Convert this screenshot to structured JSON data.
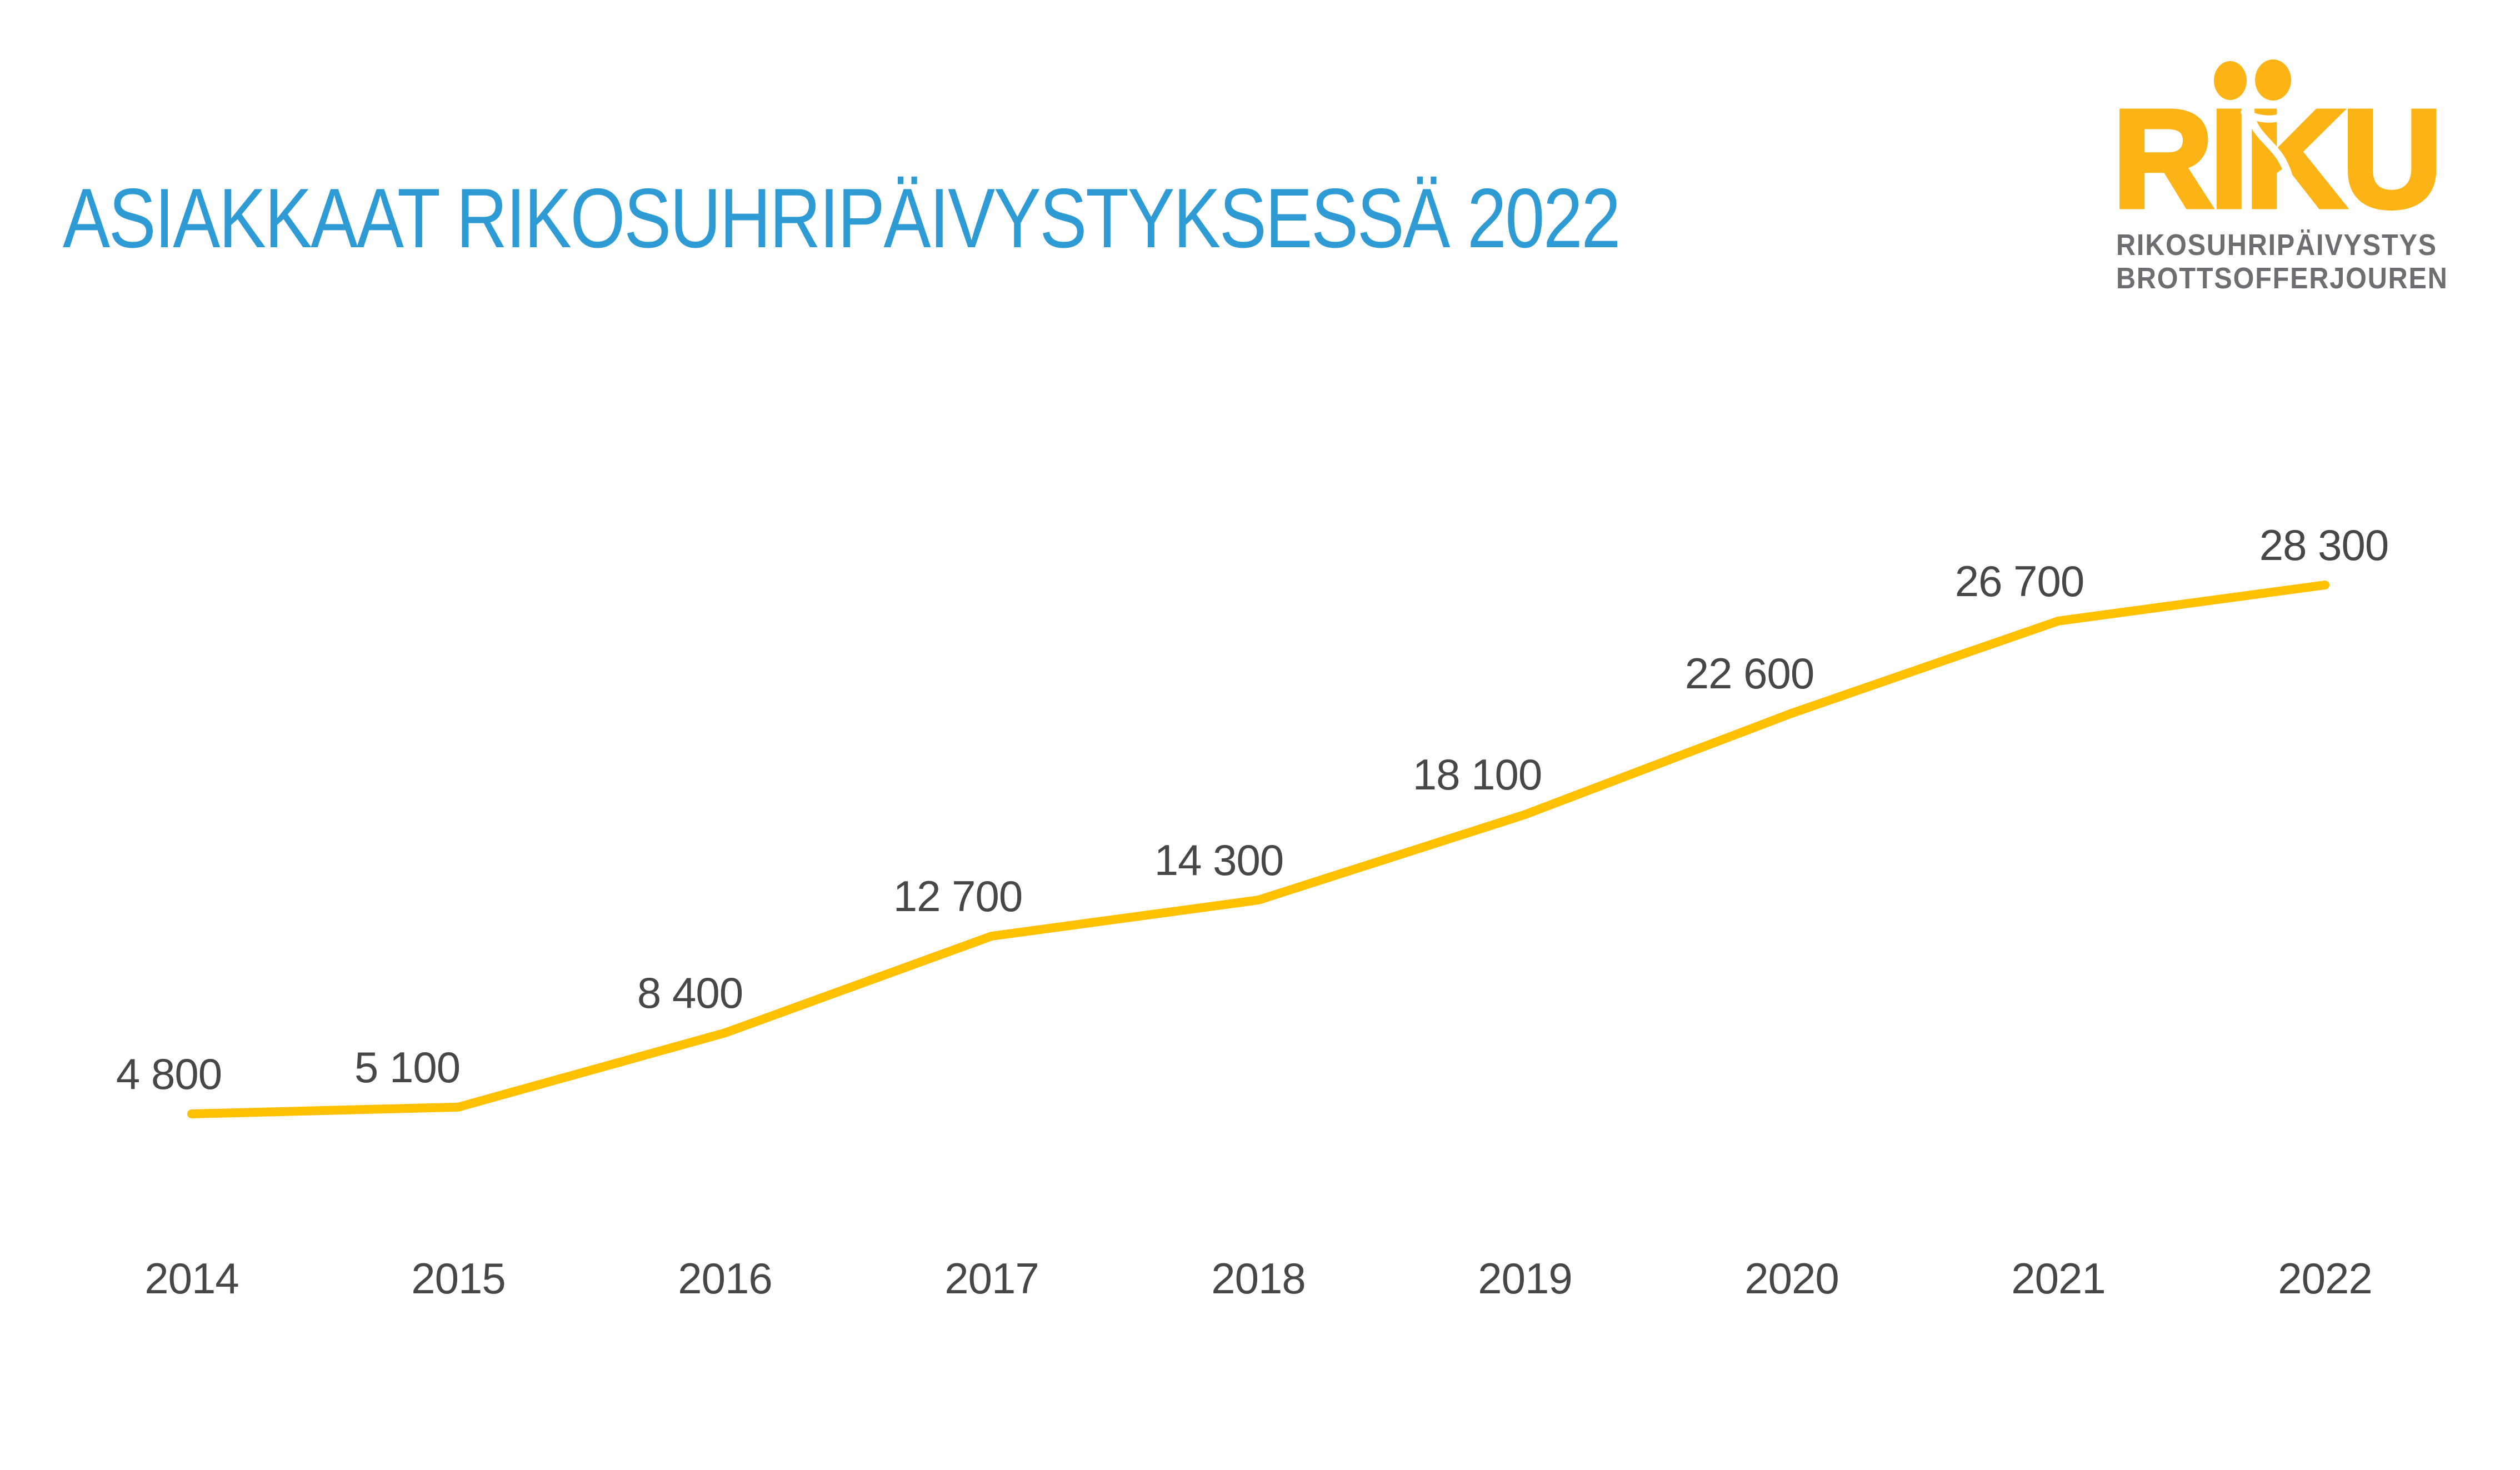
{
  "header": {
    "title": "ASIAKKAAT RIKOSUHRIPÄIVYSTYKSESSÄ 2022"
  },
  "logo": {
    "wordmark": "RIKU",
    "caption_line1": "RIKOSUHRIPÄIVYSTYS",
    "caption_line2": "BROTTSOFFERJOUREN",
    "brand_color": "#FBB316",
    "caption_color": "#6D6E71"
  },
  "chart_data": {
    "type": "line",
    "title": "ASIAKKAAT RIKOSUHRIPÄIVYSTYKSESSÄ 2022",
    "categories": [
      "2014",
      "2015",
      "2016",
      "2017",
      "2018",
      "2019",
      "2020",
      "2021",
      "2022"
    ],
    "values": [
      4800,
      5100,
      8400,
      12700,
      14300,
      18100,
      22600,
      26700,
      28300
    ],
    "value_labels": [
      "4 800",
      "5 100",
      "8 400",
      "12 700",
      "14 300",
      "18 100",
      "22 600",
      "26 700",
      "28 300"
    ],
    "xlabel": "",
    "ylabel": "",
    "ylim": [
      4800,
      28300
    ],
    "grid": false,
    "legend": false,
    "line_color": "#FFC000",
    "label_color": "#474747",
    "axis_label_color": "#474747"
  }
}
